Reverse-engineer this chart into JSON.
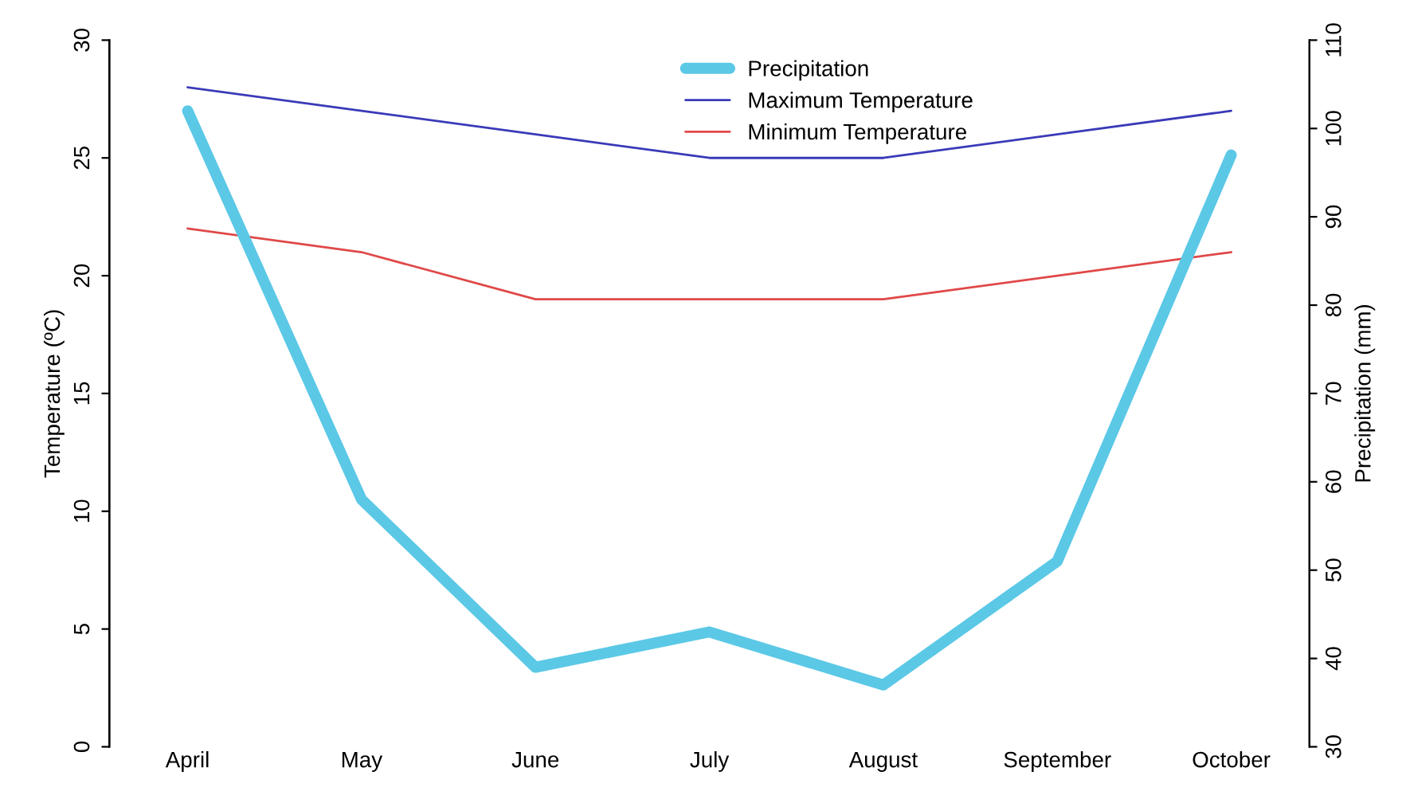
{
  "chart_data": {
    "type": "line",
    "ylabel": "Temperature (ºC)",
    "y2label": "Precipitation (mm)",
    "categories": [
      "April",
      "May",
      "June",
      "July",
      "August",
      "September",
      "October"
    ],
    "series": [
      {
        "name": "Precipitation",
        "color": "#5bc8e6",
        "axis": "y2",
        "values": [
          102,
          58,
          39,
          43,
          37,
          51,
          97
        ]
      },
      {
        "name": "Maximum Temperature",
        "color": "#3a3ab8",
        "values": [
          28,
          27,
          26,
          25,
          25,
          26,
          27
        ]
      },
      {
        "name": "Minimum Temperature",
        "color": "#e04848",
        "values": [
          22,
          21,
          19,
          19,
          19,
          20,
          21
        ]
      }
    ],
    "ylim": [
      0,
      30
    ],
    "yticks": [
      0,
      5,
      10,
      15,
      20,
      25,
      30
    ],
    "y2lim": [
      30,
      110
    ],
    "y2ticks": [
      30,
      40,
      50,
      60,
      70,
      80,
      90,
      100,
      110
    ],
    "legend": "top",
    "grid": false,
    "marker": "none",
    "line_style": "solid"
  }
}
